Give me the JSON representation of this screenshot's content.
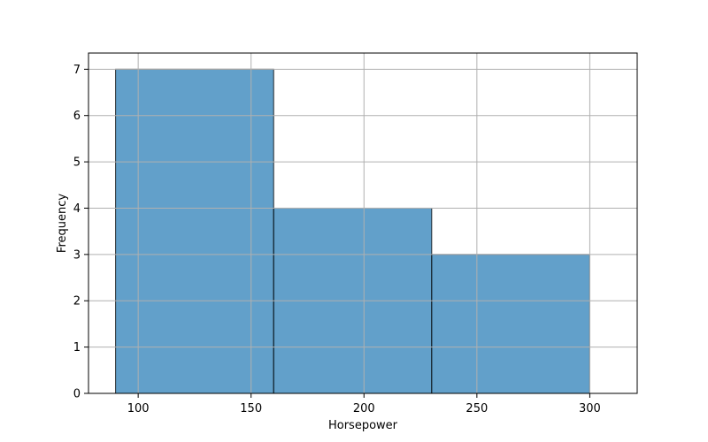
{
  "chart_data": {
    "type": "bar",
    "subtype": "histogram",
    "title": "",
    "xlabel": "Horsepower",
    "ylabel": "Frequency",
    "bins": [
      {
        "start": 90,
        "end": 160,
        "count": 7
      },
      {
        "start": 160,
        "end": 230,
        "count": 4
      },
      {
        "start": 230,
        "end": 300,
        "count": 3
      }
    ],
    "xlim": [
      78,
      321
    ],
    "ylim": [
      0,
      7.35
    ],
    "xticks": [
      100,
      150,
      200,
      250,
      300
    ],
    "yticks": [
      0,
      1,
      2,
      3,
      4,
      5,
      6,
      7
    ],
    "grid": true,
    "legend": "none",
    "colors": {
      "bar_fill": "#1f77b4",
      "bar_opacity": 0.7,
      "bar_edge": "#000000",
      "grid": "#b0b0b0",
      "axis": "#000000"
    }
  }
}
